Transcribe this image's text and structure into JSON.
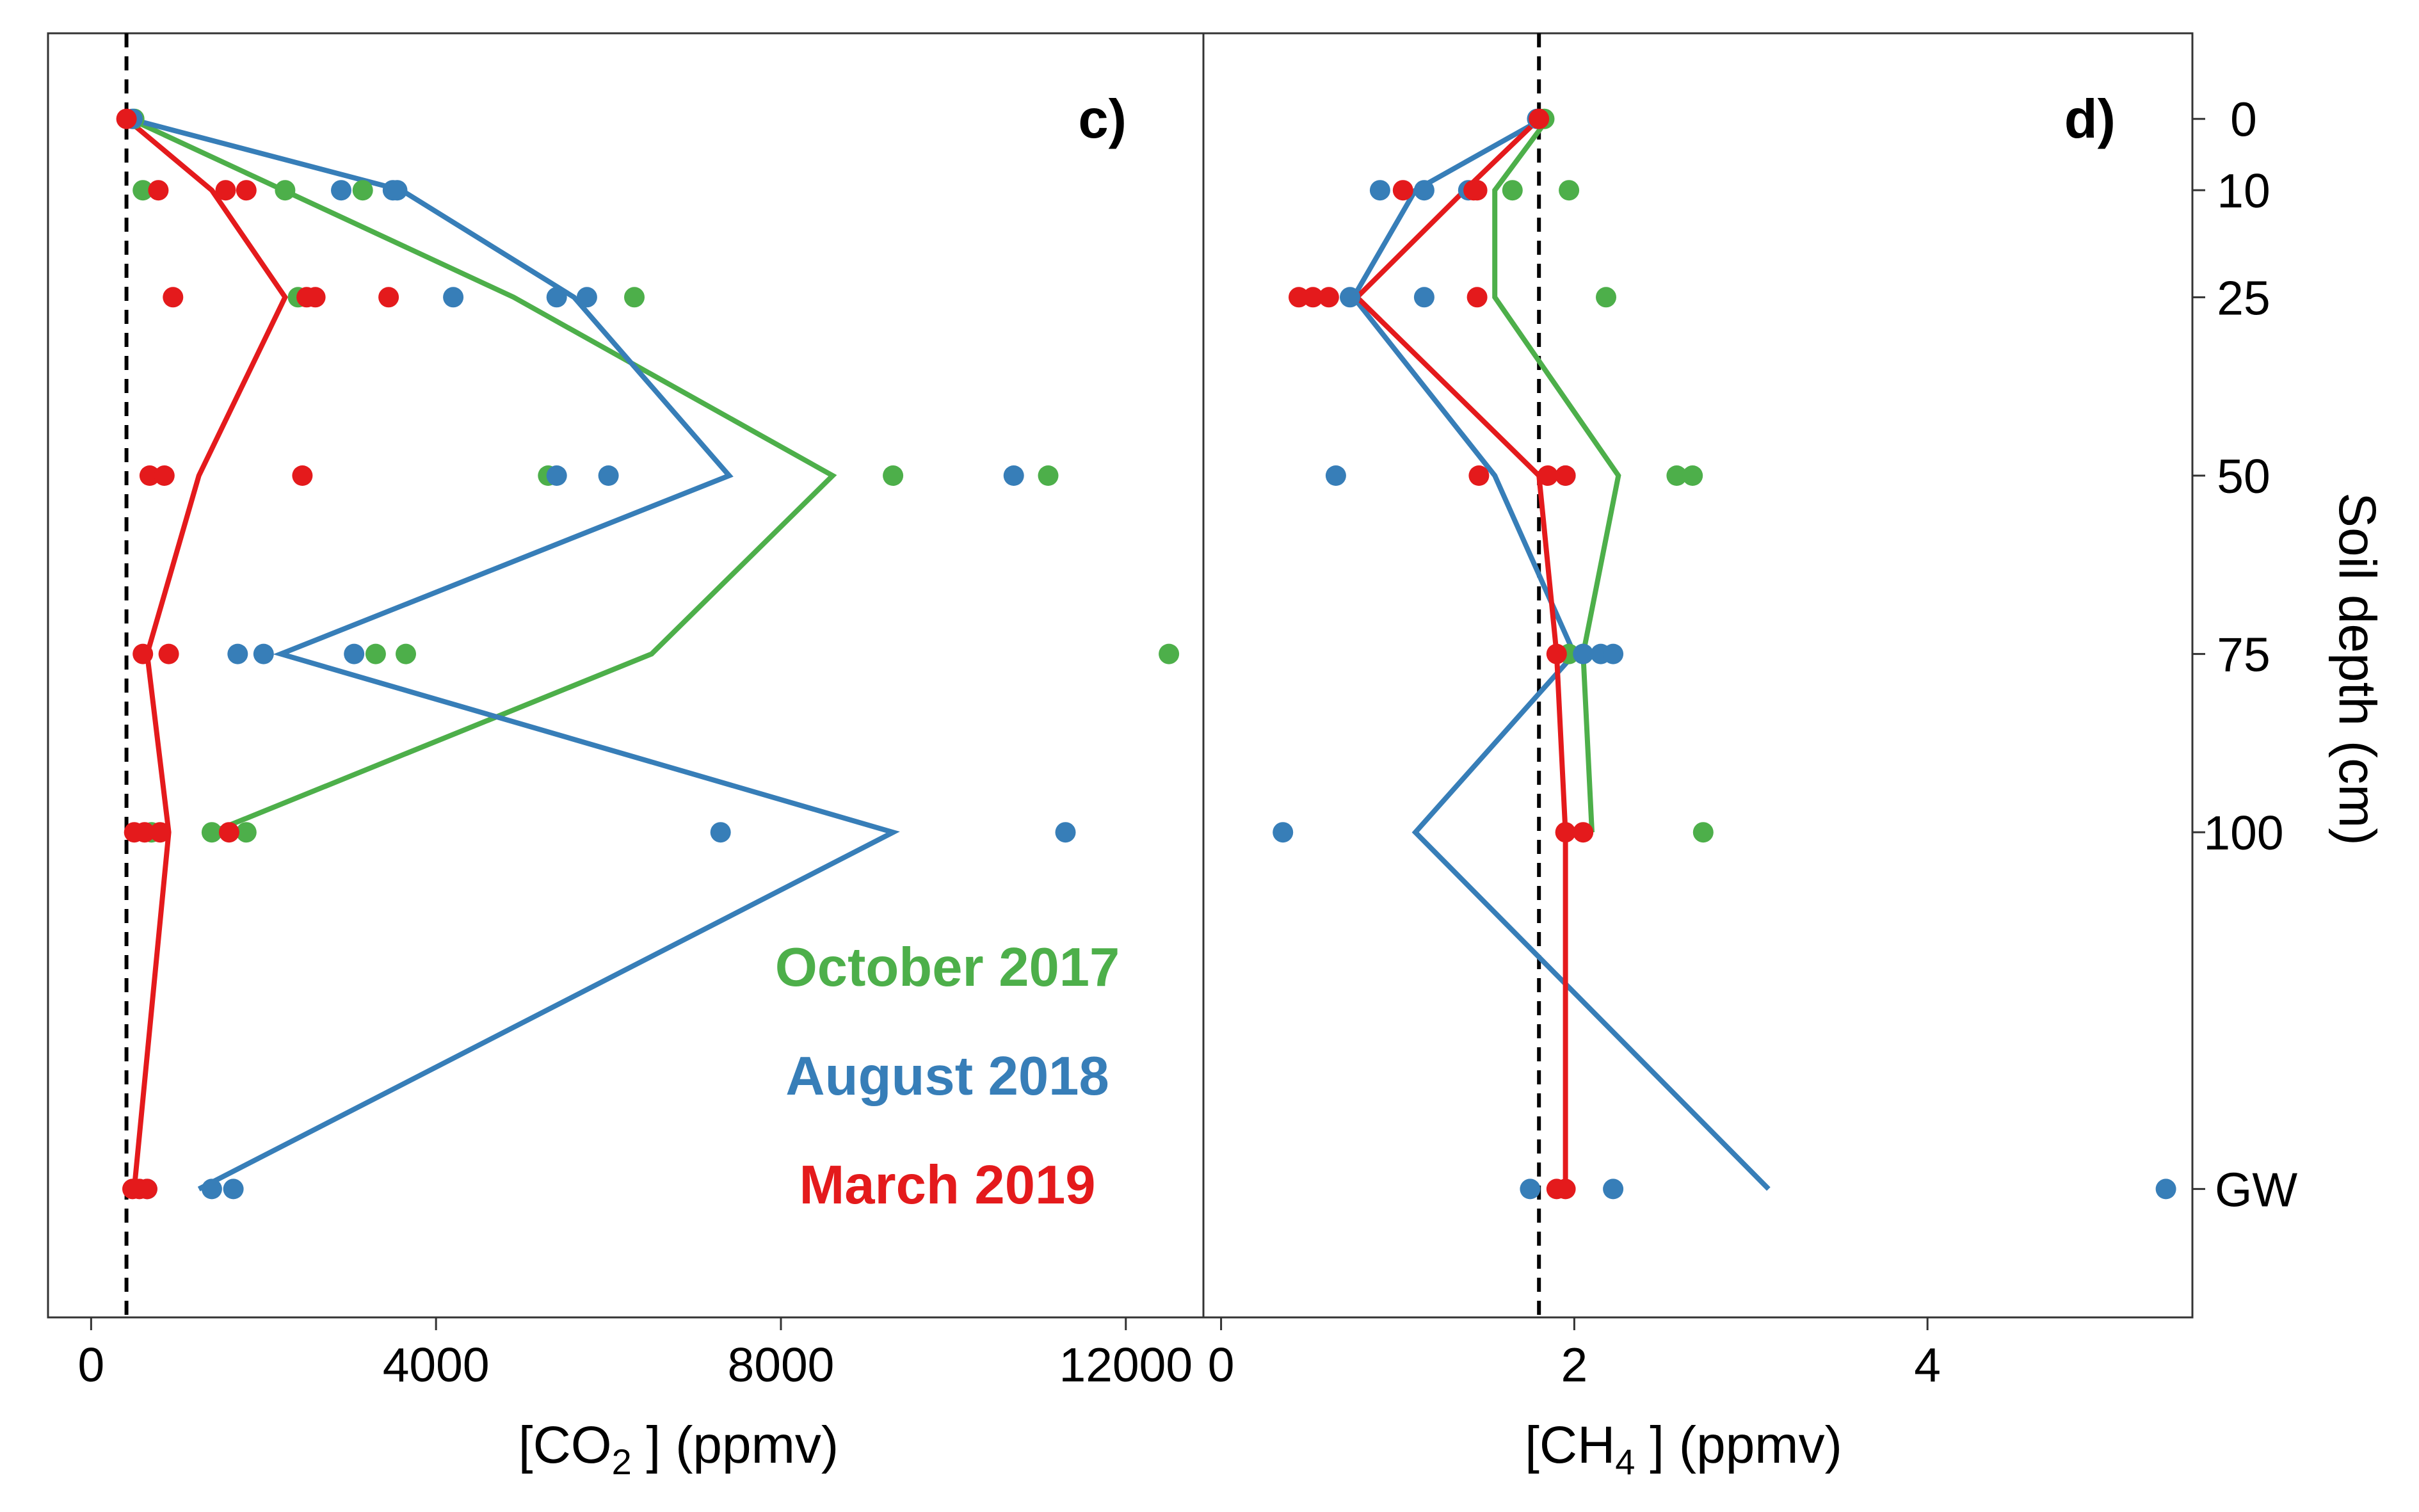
{
  "colors": {
    "oct2017": "#4daf4a",
    "aug2018": "#377eb8",
    "mar2019": "#e41a1c"
  },
  "depth_axis": {
    "label": "Soil depth (cm)",
    "ticks": [
      "0",
      "10",
      "25",
      "50",
      "75",
      "100",
      "GW"
    ],
    "tick_values": [
      0,
      10,
      25,
      50,
      75,
      100,
      150
    ]
  },
  "legend": [
    "October 2017",
    "August 2018",
    "March 2019"
  ],
  "chart_data": [
    {
      "type": "scatter",
      "panel": "c)",
      "xlabel_main": "[CO",
      "xlabel_sub": "2",
      "xlabel_tail": " ]  (ppmv)",
      "xlim": [
        -500,
        12900
      ],
      "xticks": [
        0,
        4000,
        8000,
        12000
      ],
      "xtick_labels": [
        "0",
        "4000",
        "8000",
        "12000"
      ],
      "ylim": [
        -12,
        168
      ],
      "reference_x": 410,
      "series": [
        {
          "name": "October 2017",
          "color_key": "oct2017",
          "points": [
            [
              500,
              0
            ],
            [
              600,
              10
            ],
            [
              2250,
              10
            ],
            [
              3150,
              10
            ],
            [
              2400,
              25
            ],
            [
              6300,
              25
            ],
            [
              5300,
              50
            ],
            [
              9300,
              50
            ],
            [
              11100,
              50
            ],
            [
              3300,
              75
            ],
            [
              3650,
              75
            ],
            [
              12500,
              75
            ],
            [
              700,
              100
            ],
            [
              1400,
              100
            ],
            [
              1800,
              100
            ]
          ],
          "line": [
            [
              450,
              0
            ],
            [
              4900,
              25
            ],
            [
              8600,
              50
            ],
            [
              6500,
              75
            ],
            [
              1400,
              100
            ]
          ]
        },
        {
          "name": "August 2018",
          "color_key": "aug2018",
          "points": [
            [
              480,
              0
            ],
            [
              2900,
              10
            ],
            [
              3500,
              10
            ],
            [
              3550,
              10
            ],
            [
              4200,
              25
            ],
            [
              5400,
              25
            ],
            [
              5750,
              25
            ],
            [
              5400,
              50
            ],
            [
              6000,
              50
            ],
            [
              10700,
              50
            ],
            [
              1700,
              75
            ],
            [
              2000,
              75
            ],
            [
              3050,
              75
            ],
            [
              7300,
              100
            ],
            [
              11300,
              100
            ],
            [
              650,
              150
            ],
            [
              1400,
              150
            ],
            [
              1650,
              150
            ]
          ],
          "line": [
            [
              450,
              0
            ],
            [
              3600,
              10
            ],
            [
              5600,
              25
            ],
            [
              7400,
              50
            ],
            [
              2200,
              75
            ],
            [
              9300,
              100
            ],
            [
              1250,
              150
            ]
          ]
        },
        {
          "name": "March 2019",
          "color_key": "mar2019",
          "points": [
            [
              410,
              0
            ],
            [
              780,
              10
            ],
            [
              1560,
              10
            ],
            [
              1800,
              10
            ],
            [
              950,
              25
            ],
            [
              2500,
              25
            ],
            [
              2600,
              25
            ],
            [
              3450,
              25
            ],
            [
              680,
              50
            ],
            [
              850,
              50
            ],
            [
              2450,
              50
            ],
            [
              600,
              75
            ],
            [
              900,
              75
            ],
            [
              500,
              100
            ],
            [
              620,
              100
            ],
            [
              800,
              100
            ],
            [
              1600,
              100
            ],
            [
              480,
              150
            ],
            [
              560,
              150
            ],
            [
              650,
              150
            ]
          ],
          "line": [
            [
              410,
              0
            ],
            [
              1400,
              10
            ],
            [
              2250,
              25
            ],
            [
              1250,
              50
            ],
            [
              650,
              75
            ],
            [
              900,
              100
            ],
            [
              500,
              150
            ]
          ]
        }
      ]
    },
    {
      "type": "scatter",
      "panel": "d)",
      "xlabel_main": "[CH",
      "xlabel_sub": "4",
      "xlabel_tail": " ]  (ppmv)",
      "xlim": [
        -0.1,
        5.5
      ],
      "xticks": [
        0,
        2,
        4
      ],
      "xtick_labels": [
        "0",
        "2",
        "4"
      ],
      "ylim": [
        -12,
        168
      ],
      "reference_x": 1.8,
      "series": [
        {
          "name": "October 2017",
          "color_key": "oct2017",
          "points": [
            [
              1.83,
              0
            ],
            [
              1.65,
              10
            ],
            [
              1.97,
              10
            ],
            [
              2.18,
              25
            ],
            [
              2.58,
              50
            ],
            [
              2.67,
              50
            ],
            [
              1.97,
              75
            ],
            [
              2.05,
              75
            ],
            [
              2.73,
              100
            ]
          ],
          "line": [
            [
              1.85,
              0
            ],
            [
              1.55,
              10
            ],
            [
              1.55,
              25
            ],
            [
              2.25,
              50
            ],
            [
              2.05,
              75
            ],
            [
              2.1,
              100
            ]
          ]
        },
        {
          "name": "August 2018",
          "color_key": "aug2018",
          "points": [
            [
              1.79,
              0
            ],
            [
              0.9,
              10
            ],
            [
              1.15,
              10
            ],
            [
              1.4,
              10
            ],
            [
              0.73,
              25
            ],
            [
              1.15,
              25
            ],
            [
              0.65,
              50
            ],
            [
              1.95,
              50
            ],
            [
              2.05,
              75
            ],
            [
              2.15,
              75
            ],
            [
              2.22,
              75
            ],
            [
              0.35,
              100
            ],
            [
              1.75,
              150
            ],
            [
              2.22,
              150
            ],
            [
              5.35,
              150
            ]
          ],
          "line": [
            [
              1.82,
              0
            ],
            [
              1.1,
              10
            ],
            [
              0.75,
              25
            ],
            [
              1.55,
              50
            ],
            [
              2.0,
              75
            ],
            [
              1.1,
              100
            ],
            [
              3.1,
              150
            ]
          ]
        },
        {
          "name": "March 2019",
          "color_key": "mar2019",
          "points": [
            [
              1.8,
              0
            ],
            [
              1.03,
              10
            ],
            [
              1.43,
              10
            ],
            [
              1.45,
              10
            ],
            [
              0.44,
              25
            ],
            [
              0.52,
              25
            ],
            [
              0.61,
              25
            ],
            [
              1.45,
              25
            ],
            [
              1.46,
              50
            ],
            [
              1.85,
              50
            ],
            [
              1.95,
              50
            ],
            [
              1.9,
              75
            ],
            [
              1.95,
              100
            ],
            [
              2.05,
              100
            ],
            [
              1.9,
              150
            ],
            [
              1.95,
              150
            ]
          ],
          "line": [
            [
              1.8,
              0
            ],
            [
              1.38,
              10
            ],
            [
              0.77,
              25
            ],
            [
              1.8,
              50
            ],
            [
              1.9,
              75
            ],
            [
              1.95,
              100
            ],
            [
              1.95,
              150
            ]
          ]
        }
      ]
    }
  ]
}
